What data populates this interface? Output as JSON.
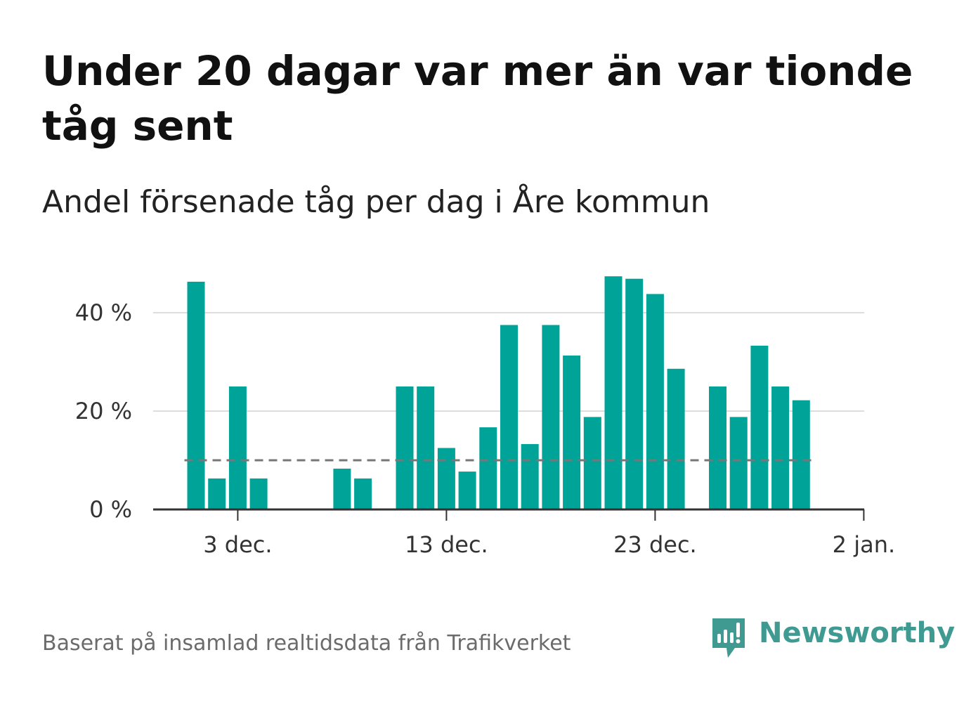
{
  "title": "Under 20 dagar var mer än var tionde tåg sent",
  "subtitle": "Andel försenade tåg per dag i Åre kommun",
  "source": "Baserat på insamlad realtidsdata från Trafikverket",
  "brand": {
    "name": "Newsworthy"
  },
  "colors": {
    "bar": "#00a398",
    "reference": "#777777",
    "grid": "#dddddd",
    "axis": "#333333",
    "brand": "#3f9a91"
  },
  "chart_data": {
    "type": "bar",
    "x_start": "1 dec.",
    "categories": [
      "1 dec.",
      "2 dec.",
      "3 dec.",
      "4 dec.",
      "5 dec.",
      "6 dec.",
      "7 dec.",
      "8 dec.",
      "9 dec.",
      "10 dec.",
      "11 dec.",
      "12 dec.",
      "13 dec.",
      "14 dec.",
      "15 dec.",
      "16 dec.",
      "17 dec.",
      "18 dec.",
      "19 dec.",
      "20 dec.",
      "21 dec.",
      "22 dec.",
      "23 dec.",
      "24 dec.",
      "25 dec.",
      "26 dec.",
      "27 dec.",
      "28 dec.",
      "29 dec.",
      "30 dec.",
      "31 dec."
    ],
    "values": [
      46.3,
      6.3,
      25.0,
      6.3,
      null,
      null,
      null,
      8.3,
      6.3,
      null,
      25.0,
      25.0,
      12.5,
      7.7,
      16.7,
      37.5,
      13.3,
      37.5,
      31.3,
      18.8,
      47.4,
      46.9,
      43.8,
      28.6,
      null,
      25.0,
      18.8,
      33.3,
      25.0,
      22.2,
      null
    ],
    "reference_value": 10,
    "ylim": [
      0,
      50
    ],
    "yticks": [
      0,
      20,
      40
    ],
    "ytick_labels": [
      "0 %",
      "20 %",
      "40 %"
    ],
    "xticks": [
      {
        "label": "3 dec.",
        "index": 2
      },
      {
        "label": "13 dec.",
        "index": 12
      },
      {
        "label": "23 dec.",
        "index": 22
      },
      {
        "label": "2 jan.",
        "index": 32
      }
    ],
    "grid": true
  }
}
